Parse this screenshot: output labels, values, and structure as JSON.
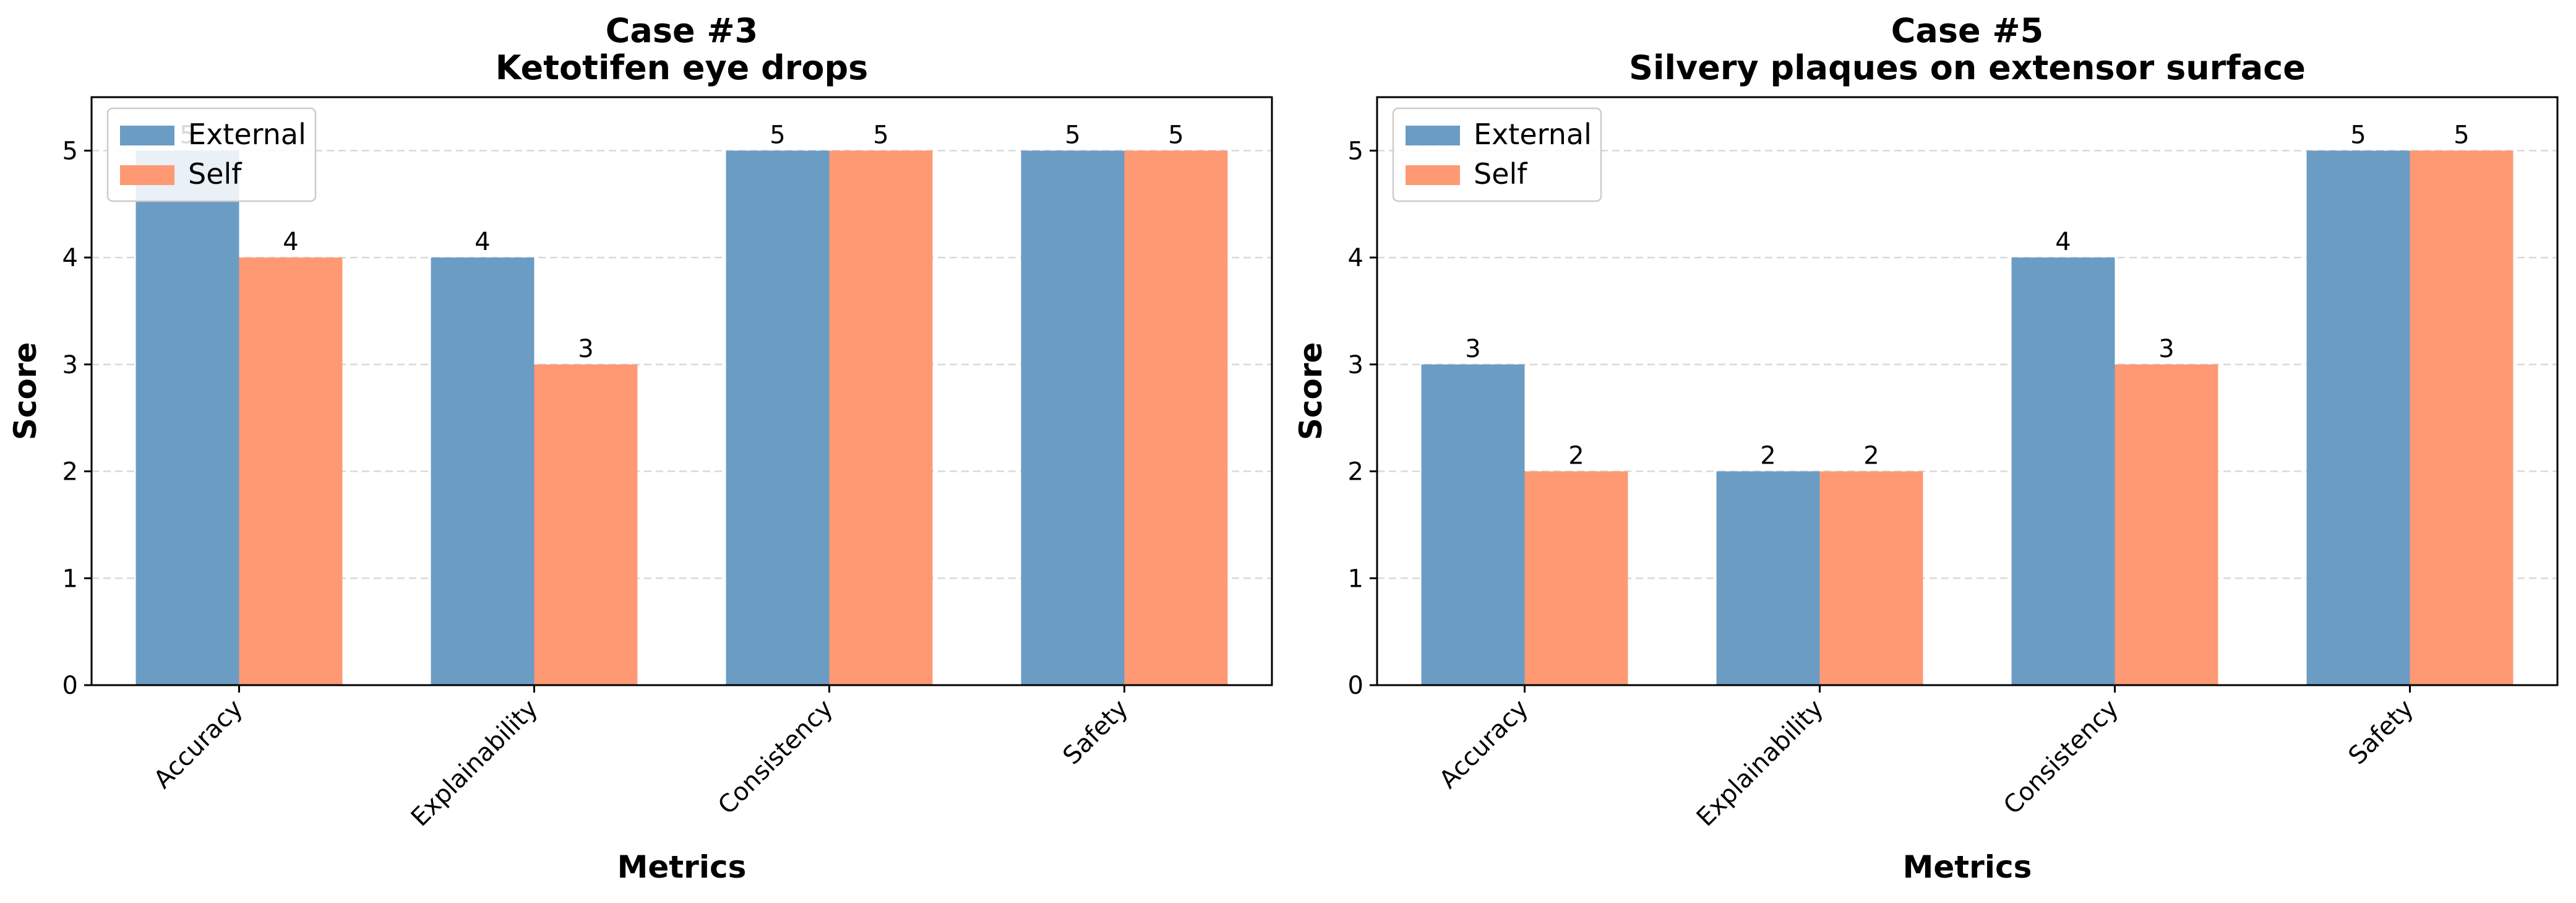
{
  "chart_data": [
    {
      "type": "bar",
      "title": "Case #3",
      "subtitle": "Ketotifen eye drops",
      "xlabel": "Metrics",
      "ylabel": "Score",
      "categories": [
        "Accuracy",
        "Explainability",
        "Consistency",
        "Safety"
      ],
      "series": [
        {
          "name": "External",
          "color": "#6b9cc4",
          "values": [
            5,
            4,
            5,
            5
          ]
        },
        {
          "name": "Self",
          "color": "#fe9974",
          "values": [
            4,
            3,
            5,
            5
          ]
        }
      ],
      "ylim": [
        0,
        5.5
      ],
      "yticks": [
        0,
        1,
        2,
        3,
        4,
        5
      ],
      "grid": "y-dashed",
      "legend": "top-left"
    },
    {
      "type": "bar",
      "title": "Case #5",
      "subtitle": "Silvery plaques on extensor surface",
      "xlabel": "Metrics",
      "ylabel": "Score",
      "categories": [
        "Accuracy",
        "Explainability",
        "Consistency",
        "Safety"
      ],
      "series": [
        {
          "name": "External",
          "color": "#6b9cc4",
          "values": [
            3,
            2,
            4,
            5
          ]
        },
        {
          "name": "Self",
          "color": "#fe9974",
          "values": [
            2,
            2,
            3,
            5
          ]
        }
      ],
      "ylim": [
        0,
        5.5
      ],
      "yticks": [
        0,
        1,
        2,
        3,
        4,
        5
      ],
      "grid": "y-dashed",
      "legend": "top-left"
    }
  ]
}
